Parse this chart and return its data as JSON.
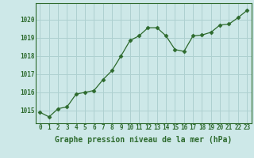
{
  "x": [
    0,
    1,
    2,
    3,
    4,
    5,
    6,
    7,
    8,
    9,
    10,
    11,
    12,
    13,
    14,
    15,
    16,
    17,
    18,
    19,
    20,
    21,
    22,
    23
  ],
  "y": [
    1014.9,
    1014.65,
    1015.1,
    1015.2,
    1015.9,
    1016.0,
    1016.1,
    1016.7,
    1017.2,
    1018.0,
    1018.85,
    1019.1,
    1019.55,
    1019.55,
    1019.1,
    1018.35,
    1018.25,
    1019.1,
    1019.15,
    1019.3,
    1019.7,
    1019.75,
    1020.1,
    1020.5
  ],
  "line_color": "#2d6a2d",
  "marker": "D",
  "marker_size": 2.5,
  "background_color": "#cde8e8",
  "grid_color": "#aed0d0",
  "xlabel": "Graphe pression niveau de la mer (hPa)",
  "xlabel_fontsize": 7,
  "ylabel_ticks": [
    1015,
    1016,
    1017,
    1018,
    1019,
    1020
  ],
  "ylim": [
    1014.3,
    1020.9
  ],
  "xlim": [
    -0.5,
    23.5
  ],
  "tick_fontsize": 5.5,
  "tick_color": "#2d6a2d",
  "spine_color": "#2d6a2d",
  "linewidth": 0.9
}
